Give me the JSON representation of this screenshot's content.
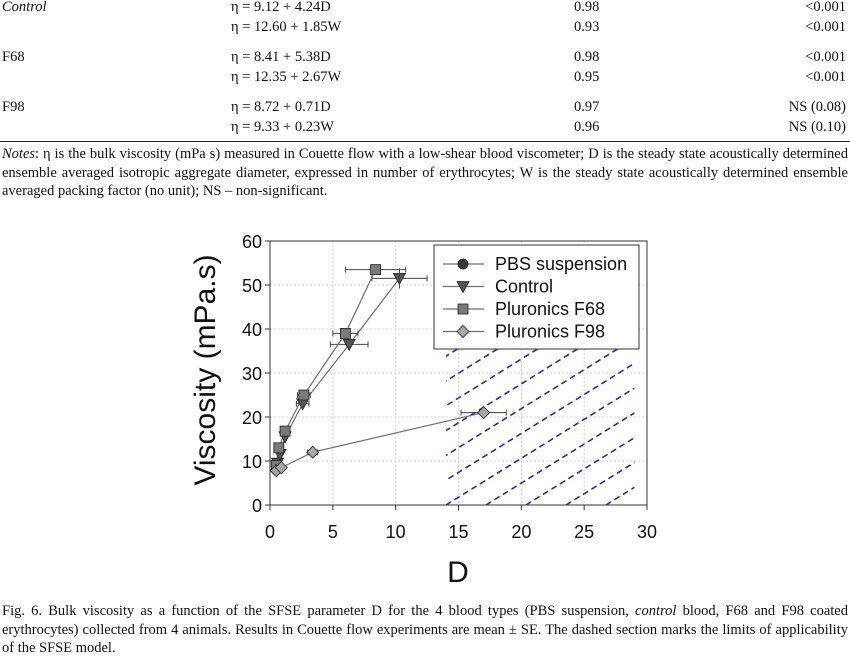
{
  "table": {
    "rows": [
      {
        "name": "Control",
        "name_italic": true,
        "eq": "η = 9.12 + 4.24D",
        "r2": "0.98",
        "p": "<0.001"
      },
      {
        "name": "",
        "name_italic": false,
        "eq": "η = 12.60 + 1.85W",
        "r2": "0.93",
        "p": "<0.001"
      },
      {
        "name": "F68",
        "name_italic": false,
        "eq": "η = 8.41 + 5.38D",
        "r2": "0.98",
        "p": "<0.001"
      },
      {
        "name": "",
        "name_italic": false,
        "eq": "η = 12.35 + 2.67W",
        "r2": "0.95",
        "p": "<0.001"
      },
      {
        "name": "F98",
        "name_italic": false,
        "eq": "η = 8.72 + 0.71D",
        "r2": "0.97",
        "p": "NS (0.08)"
      },
      {
        "name": "",
        "name_italic": false,
        "eq": "η = 9.33 + 0.23W",
        "r2": "0.96",
        "p": "NS (0.10)"
      }
    ]
  },
  "notes": {
    "label": "Notes",
    "text": ": η is the bulk viscosity (mPa s) measured in Couette flow with a low-shear blood viscometer; D is the steady state acoustically determined ensemble averaged isotropic aggregate diameter, expressed in number of erythrocytes; W is the steady state acoustically determined ensemble averaged packing factor (no unit); NS – non-significant."
  },
  "chart_data": {
    "type": "scatter",
    "xlabel": "D",
    "ylabel": "Viscosity (mPa.s)",
    "xlim": [
      0,
      30
    ],
    "ylim": [
      0,
      60
    ],
    "xticks": [
      0,
      5,
      10,
      15,
      20,
      25,
      30
    ],
    "yticks": [
      0,
      10,
      20,
      30,
      40,
      50,
      60
    ],
    "grid": true,
    "legend_position": "top-right",
    "shaded_region": {
      "description": "dashed section",
      "x_from": 14,
      "x_to": 29
    },
    "colors": {
      "dash": "#2a2ab0",
      "line": "#6f6f6f",
      "pbs": "#3a3a3a",
      "control": "#555555",
      "f68": "#7a7a7a",
      "f98": "#a6a6a6"
    },
    "series": [
      {
        "name": "PBS suspension",
        "marker": "circle",
        "points": [
          {
            "x": 0.5,
            "y": 8.0,
            "xerr": 0
          }
        ]
      },
      {
        "name": "Control",
        "marker": "triangle-down",
        "points": [
          {
            "x": 0.6,
            "y": 9.5,
            "xerr": 0
          },
          {
            "x": 0.8,
            "y": 11.5,
            "xerr": 0
          },
          {
            "x": 1.2,
            "y": 15.5,
            "xerr": 0
          },
          {
            "x": 2.6,
            "y": 23.0,
            "xerr": 0.5
          },
          {
            "x": 6.3,
            "y": 36.5,
            "xerr": 1.5
          },
          {
            "x": 10.3,
            "y": 51.5,
            "xerr": 2.2
          }
        ]
      },
      {
        "name": "Pluronics F68",
        "marker": "square",
        "points": [
          {
            "x": 0.5,
            "y": 9.0,
            "xerr": 0
          },
          {
            "x": 0.7,
            "y": 13.0,
            "xerr": 0
          },
          {
            "x": 1.2,
            "y": 16.8,
            "xerr": 0
          },
          {
            "x": 2.7,
            "y": 25.0,
            "xerr": 0.5
          },
          {
            "x": 6.0,
            "y": 39.0,
            "xerr": 1.0
          },
          {
            "x": 8.4,
            "y": 53.5,
            "xerr": 2.4
          }
        ]
      },
      {
        "name": "Pluronics F98",
        "marker": "diamond",
        "points": [
          {
            "x": 0.5,
            "y": 7.8,
            "xerr": 0
          },
          {
            "x": 0.9,
            "y": 8.5,
            "xerr": 0
          },
          {
            "x": 3.4,
            "y": 12.0,
            "xerr": 0.4
          },
          {
            "x": 17.0,
            "y": 21.0,
            "xerr": 1.8
          }
        ]
      }
    ]
  },
  "caption": {
    "lead": "Fig. 6. Bulk viscosity as a function of the SFSE parameter D for the 4 blood types (PBS suspension, ",
    "italic": "control",
    "tail": " blood, F68 and F98 coated erythrocytes) collected from 4 animals. Results in Couette flow experiments are mean ± SE. The dashed section marks the limits of applicability of the SFSE model."
  }
}
